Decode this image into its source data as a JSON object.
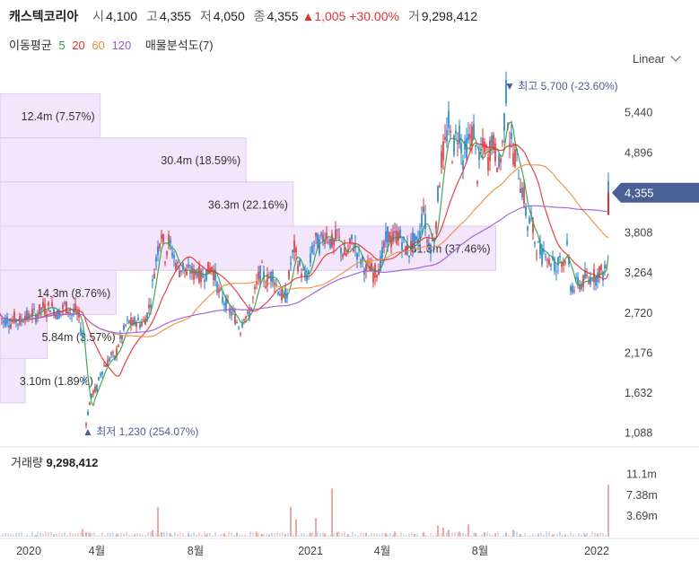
{
  "header": {
    "name": "캐스텍코리아",
    "open_label": "시",
    "open": "4,100",
    "high_label": "고",
    "high": "4,355",
    "low_label": "저",
    "low": "4,050",
    "close_label": "종",
    "close": "4,355",
    "change": "▲1,005 +30.00%",
    "volume_label": "거",
    "volume": "9,298,412"
  },
  "ma_legend": {
    "title": "이동평균",
    "p5": "5",
    "p20": "20",
    "p60": "60",
    "p120": "120",
    "analysis": "매물분석도(7)"
  },
  "scale_mode": "Linear",
  "volume_panel": {
    "title": "거래량",
    "value": "9,298,412"
  },
  "colors": {
    "up": "#e03131",
    "down": "#1c7ed6",
    "ma5": "#2f9e44",
    "ma20": "#e03131",
    "ma60": "#f08c3a",
    "ma120": "#9b59d0",
    "profile": "#f3e6fb",
    "profile_border": "#e2c9f2",
    "price_tag": "#4a5f94"
  },
  "chart_data": {
    "type": "candlestick",
    "price_axis": {
      "ticks": [
        "5,440",
        "4,896",
        "4,352",
        "3,808",
        "3,264",
        "2,720",
        "2,176",
        "1,632",
        "1,088"
      ],
      "range": [
        900,
        5900
      ]
    },
    "volume_axis": {
      "ticks": [
        "11.1m",
        "7.38m",
        "3.69m"
      ],
      "max": 12.5
    },
    "x_ticks": [
      "2020",
      "4월",
      "8월",
      "2021",
      "4월",
      "8월",
      "2022"
    ],
    "current_price_tag": "4,355",
    "high_annotation": "최고 5,700 (-23.60%)",
    "low_annotation": "최저 1,230 (254.07%)",
    "volume_profile": [
      {
        "label": "12.4m (7.57%)",
        "low": 5100,
        "high": 5700,
        "pct": 7.57
      },
      {
        "label": "30.4m (18.59%)",
        "low": 4500,
        "high": 5100,
        "pct": 18.59
      },
      {
        "label": "36.3m (22.16%)",
        "low": 3900,
        "high": 4500,
        "pct": 22.16
      },
      {
        "label": "61.3m (37.46%)",
        "low": 3300,
        "high": 3900,
        "pct": 37.46
      },
      {
        "label": "14.3m (8.76%)",
        "low": 2700,
        "high": 3300,
        "pct": 8.76
      },
      {
        "label": "5.84m (3.57%)",
        "low": 2100,
        "high": 2700,
        "pct": 3.57
      },
      {
        "label": "3.10m (1.89%)",
        "low": 1500,
        "high": 2100,
        "pct": 1.89
      }
    ],
    "price_path": [
      [
        0,
        2700
      ],
      [
        4,
        2600
      ],
      [
        8,
        2640
      ],
      [
        12,
        2580
      ],
      [
        16,
        2650
      ],
      [
        20,
        2600
      ],
      [
        24,
        2620
      ],
      [
        28,
        2700
      ],
      [
        32,
        2650
      ],
      [
        36,
        2720
      ],
      [
        40,
        2680
      ],
      [
        44,
        2750
      ],
      [
        48,
        2800
      ],
      [
        52,
        2760
      ],
      [
        56,
        2820
      ],
      [
        60,
        2780
      ],
      [
        64,
        2700
      ],
      [
        68,
        2750
      ],
      [
        72,
        2820
      ],
      [
        76,
        2780
      ],
      [
        80,
        2700
      ],
      [
        84,
        2760
      ],
      [
        88,
        2650
      ],
      [
        92,
        2400
      ],
      [
        96,
        1230
      ],
      [
        100,
        1500
      ],
      [
        104,
        1650
      ],
      [
        108,
        1700
      ],
      [
        112,
        1900
      ],
      [
        116,
        2000
      ],
      [
        120,
        2050
      ],
      [
        124,
        2150
      ],
      [
        128,
        2100
      ],
      [
        132,
        2300
      ],
      [
        136,
        2400
      ],
      [
        140,
        2550
      ],
      [
        144,
        2600
      ],
      [
        148,
        2560
      ],
      [
        152,
        2620
      ],
      [
        156,
        2580
      ],
      [
        160,
        2600
      ],
      [
        164,
        2700
      ],
      [
        168,
        2900
      ],
      [
        172,
        3300
      ],
      [
        176,
        3600
      ],
      [
        180,
        3850
      ],
      [
        184,
        3500
      ],
      [
        188,
        3700
      ],
      [
        192,
        3550
      ],
      [
        196,
        3400
      ],
      [
        200,
        3300
      ],
      [
        204,
        3350
      ],
      [
        208,
        3250
      ],
      [
        212,
        3300
      ],
      [
        216,
        3250
      ],
      [
        220,
        3300
      ],
      [
        224,
        3200
      ],
      [
        228,
        3250
      ],
      [
        232,
        3300
      ],
      [
        236,
        3350
      ],
      [
        240,
        3200
      ],
      [
        244,
        3000
      ],
      [
        248,
        2900
      ],
      [
        252,
        2850
      ],
      [
        256,
        2750
      ],
      [
        260,
        2700
      ],
      [
        264,
        2600
      ],
      [
        268,
        2500
      ],
      [
        272,
        2700
      ],
      [
        276,
        2650
      ],
      [
        280,
        2800
      ],
      [
        284,
        3000
      ],
      [
        288,
        3200
      ],
      [
        292,
        3300
      ],
      [
        296,
        3150
      ],
      [
        300,
        3200
      ],
      [
        304,
        3250
      ],
      [
        308,
        3100
      ],
      [
        312,
        3000
      ],
      [
        316,
        2900
      ],
      [
        320,
        3000
      ],
      [
        324,
        3400
      ],
      [
        328,
        3600
      ],
      [
        332,
        3400
      ],
      [
        336,
        3300
      ],
      [
        340,
        3200
      ],
      [
        344,
        3250
      ],
      [
        348,
        3600
      ],
      [
        352,
        3700
      ],
      [
        356,
        3650
      ],
      [
        360,
        3750
      ],
      [
        364,
        3800
      ],
      [
        368,
        3700
      ],
      [
        372,
        3650
      ],
      [
        376,
        3800
      ],
      [
        380,
        3600
      ],
      [
        384,
        3500
      ],
      [
        388,
        3550
      ],
      [
        392,
        3700
      ],
      [
        396,
        3600
      ],
      [
        400,
        3500
      ],
      [
        404,
        3400
      ],
      [
        408,
        3300
      ],
      [
        412,
        3350
      ],
      [
        416,
        3250
      ],
      [
        420,
        3300
      ],
      [
        424,
        3400
      ],
      [
        428,
        3600
      ],
      [
        432,
        3800
      ],
      [
        436,
        3700
      ],
      [
        440,
        3750
      ],
      [
        444,
        3800
      ],
      [
        448,
        3700
      ],
      [
        452,
        3600
      ],
      [
        456,
        3550
      ],
      [
        460,
        3700
      ],
      [
        464,
        3650
      ],
      [
        468,
        3800
      ],
      [
        472,
        4200
      ],
      [
        476,
        3700
      ],
      [
        480,
        3650
      ],
      [
        484,
        3700
      ],
      [
        488,
        4300
      ],
      [
        492,
        4800
      ],
      [
        496,
        5000
      ],
      [
        500,
        5300
      ],
      [
        504,
        4900
      ],
      [
        508,
        5100
      ],
      [
        512,
        5200
      ],
      [
        516,
        4800
      ],
      [
        520,
        5000
      ],
      [
        524,
        5100
      ],
      [
        528,
        5200
      ],
      [
        532,
        4600
      ],
      [
        536,
        4900
      ],
      [
        540,
        5000
      ],
      [
        544,
        4800
      ],
      [
        548,
        5100
      ],
      [
        552,
        4900
      ],
      [
        556,
        4700
      ],
      [
        560,
        5000
      ],
      [
        564,
        5700
      ],
      [
        568,
        5100
      ],
      [
        572,
        4900
      ],
      [
        576,
        4800
      ],
      [
        580,
        4500
      ],
      [
        584,
        4300
      ],
      [
        588,
        3900
      ],
      [
        592,
        4000
      ],
      [
        596,
        3700
      ],
      [
        600,
        3600
      ],
      [
        604,
        3500
      ],
      [
        608,
        3600
      ],
      [
        612,
        3400
      ],
      [
        616,
        3450
      ],
      [
        620,
        3300
      ],
      [
        624,
        3500
      ],
      [
        628,
        3400
      ],
      [
        632,
        3600
      ],
      [
        636,
        3100
      ],
      [
        640,
        3050
      ],
      [
        644,
        3150
      ],
      [
        648,
        3100
      ],
      [
        652,
        3200
      ],
      [
        656,
        3150
      ],
      [
        660,
        3250
      ],
      [
        664,
        3200
      ],
      [
        668,
        3300
      ],
      [
        672,
        3250
      ],
      [
        676,
        3350
      ],
      [
        678,
        4355
      ]
    ],
    "volume_bars": [
      [
        40,
        0.3
      ],
      [
        60,
        0.4
      ],
      [
        92,
        1.4
      ],
      [
        96,
        0.8
      ],
      [
        100,
        0.6
      ],
      [
        130,
        0.5
      ],
      [
        150,
        0.4
      ],
      [
        170,
        1.2
      ],
      [
        176,
        5.3
      ],
      [
        180,
        0.8
      ],
      [
        190,
        0.6
      ],
      [
        210,
        0.5
      ],
      [
        230,
        0.4
      ],
      [
        250,
        0.6
      ],
      [
        264,
        0.7
      ],
      [
        286,
        0.9
      ],
      [
        292,
        0.5
      ],
      [
        300,
        0.4
      ],
      [
        318,
        0.5
      ],
      [
        324,
        5.3
      ],
      [
        330,
        3.1
      ],
      [
        346,
        0.7
      ],
      [
        352,
        3.3
      ],
      [
        362,
        0.6
      ],
      [
        370,
        8.6
      ],
      [
        376,
        0.8
      ],
      [
        388,
        0.5
      ],
      [
        408,
        0.7
      ],
      [
        430,
        0.6
      ],
      [
        440,
        0.9
      ],
      [
        462,
        0.5
      ],
      [
        472,
        0.8
      ],
      [
        488,
        2.0
      ],
      [
        494,
        1.6
      ],
      [
        500,
        1.2
      ],
      [
        512,
        0.9
      ],
      [
        522,
        2.2
      ],
      [
        530,
        0.7
      ],
      [
        540,
        0.8
      ],
      [
        552,
        0.6
      ],
      [
        564,
        0.7
      ],
      [
        572,
        1.2
      ],
      [
        580,
        0.5
      ],
      [
        600,
        0.4
      ],
      [
        616,
        0.4
      ],
      [
        630,
        0.3
      ],
      [
        652,
        0.4
      ],
      [
        666,
        0.5
      ],
      [
        678,
        9.3
      ]
    ]
  }
}
